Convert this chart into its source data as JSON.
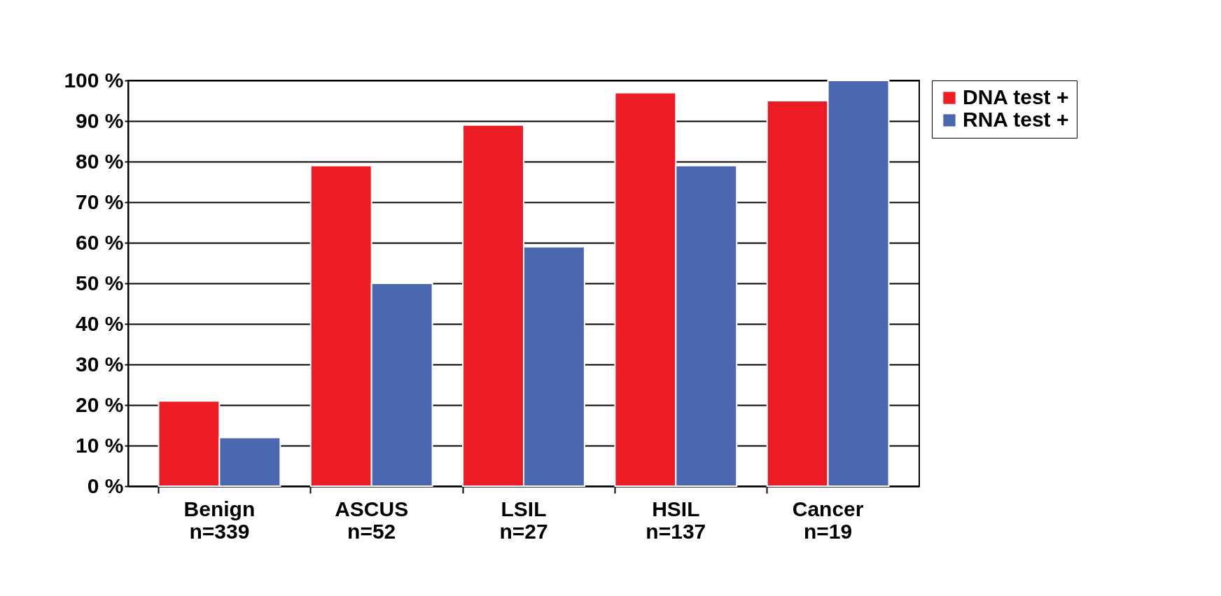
{
  "chart_data": {
    "type": "bar",
    "categories": [
      "Benign\nn=339",
      "ASCUS\nn=52",
      "LSIL\nn=27",
      "HSIL\nn=137",
      "Cancer\nn=19"
    ],
    "series": [
      {
        "name": "DNA test +",
        "color": "#ed1c24",
        "values": [
          21,
          79,
          89,
          97,
          95
        ]
      },
      {
        "name": "RNA test +",
        "color": "#4a67b0",
        "values": [
          12,
          50,
          59,
          79,
          100
        ]
      }
    ],
    "ylim": [
      0,
      100
    ],
    "yticks": [
      {
        "value": 0,
        "label": "0 %"
      },
      {
        "value": 10,
        "label": "10 %"
      },
      {
        "value": 20,
        "label": "20 %"
      },
      {
        "value": 30,
        "label": "30 %"
      },
      {
        "value": 40,
        "label": "40 %"
      },
      {
        "value": 50,
        "label": "50 %"
      },
      {
        "value": 60,
        "label": "60 %"
      },
      {
        "value": 70,
        "label": "70 %"
      },
      {
        "value": 80,
        "label": "80 %"
      },
      {
        "value": 90,
        "label": "90 %"
      },
      {
        "value": 100,
        "label": "100 %"
      }
    ],
    "grid": "y",
    "legend": "right"
  }
}
